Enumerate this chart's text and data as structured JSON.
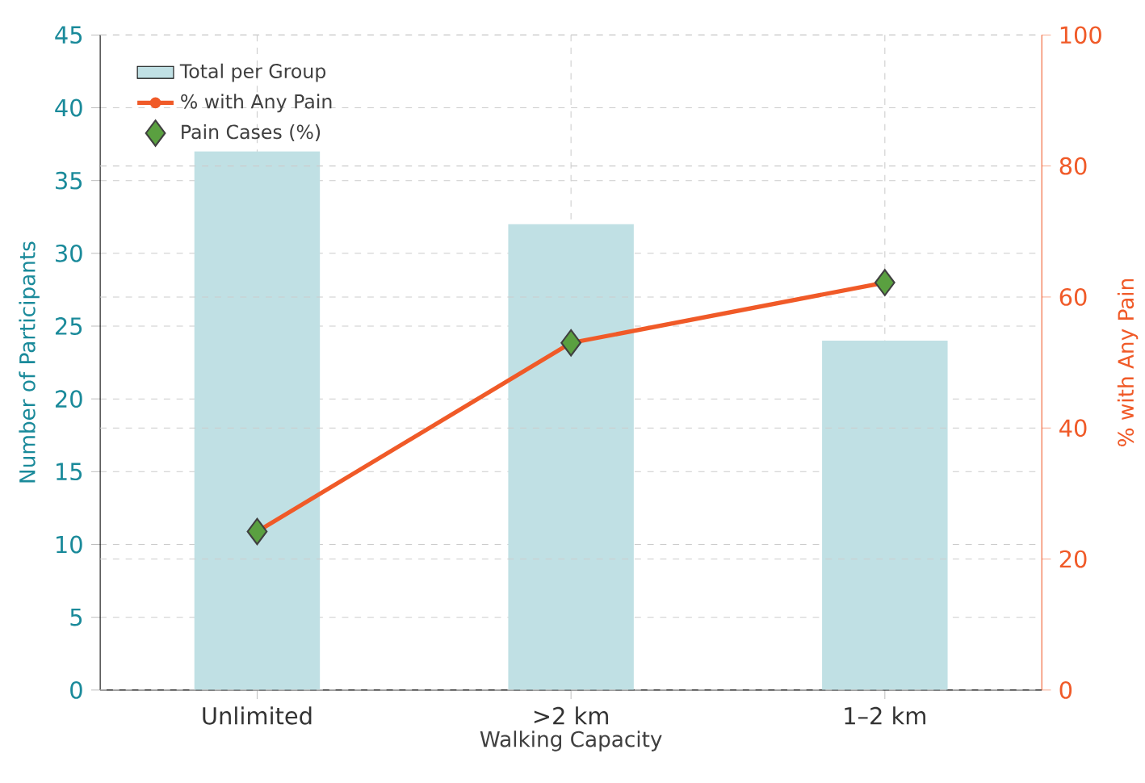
{
  "chart_data": {
    "type": "bar",
    "xlabel": "Walking Capacity",
    "ylabel": "Number of Participants",
    "y2label": "% with Any Pain",
    "categories": [
      "Unlimited",
      ">2 km",
      "1–2 km"
    ],
    "series": [
      {
        "name": "Total per Group",
        "color": "#c0e0e4",
        "values": [
          37,
          32,
          24
        ]
      },
      {
        "name": "% with Any Pain",
        "type": "line",
        "axis": "y2",
        "color": "#f05a28",
        "marker": "circle",
        "line_style": "solid",
        "values": [
          24.2,
          53.0,
          62.2
        ]
      },
      {
        "name": "Pain Cases (%)",
        "type": "scatter",
        "axis": "y2",
        "color": "#5aa040",
        "marker": "diamond",
        "values": [
          24.2,
          53.0,
          62.2
        ]
      }
    ],
    "ylim": [
      0,
      45
    ],
    "yticks": [
      0,
      5,
      10,
      15,
      20,
      25,
      30,
      35,
      40,
      45
    ],
    "y2lim": [
      0,
      100
    ],
    "y2ticks": [
      0,
      20,
      40,
      60,
      80,
      100
    ],
    "grid": true,
    "legend": "top left"
  }
}
